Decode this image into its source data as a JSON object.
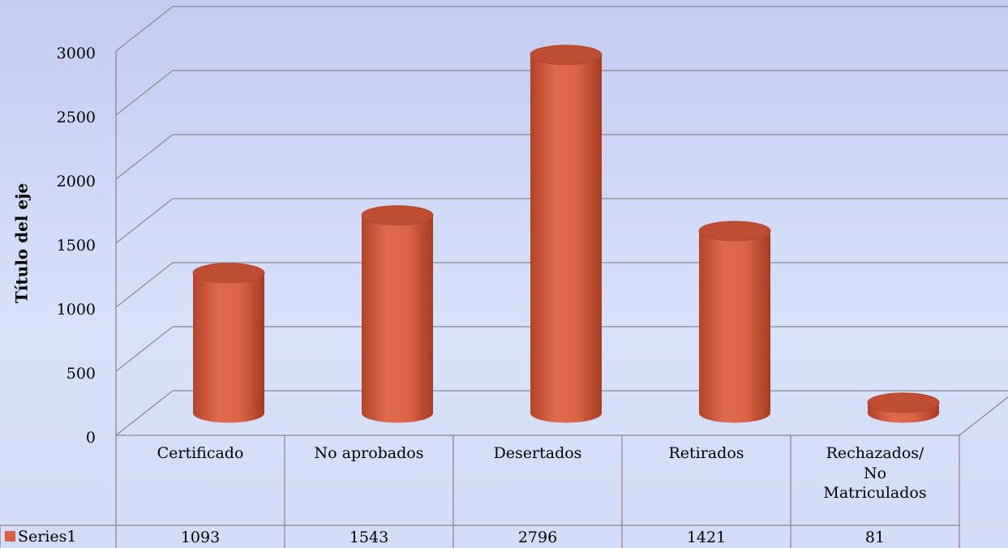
{
  "chart_data": {
    "type": "bar",
    "shape": "cylinder",
    "y_axis_title": "Título del eje",
    "categories": [
      "Certificado",
      "No aprobados",
      "Desertados",
      "Retirados",
      "Rechazados/ No Matriculados"
    ],
    "series": [
      {
        "name": "Series1",
        "color": "#d95f43",
        "values": [
          1093,
          1543,
          2796,
          1421,
          81
        ]
      }
    ],
    "ylim": [
      0,
      3000
    ],
    "yticks": [
      0,
      500,
      1000,
      1500,
      2000,
      2500,
      3000
    ],
    "grid": true
  }
}
